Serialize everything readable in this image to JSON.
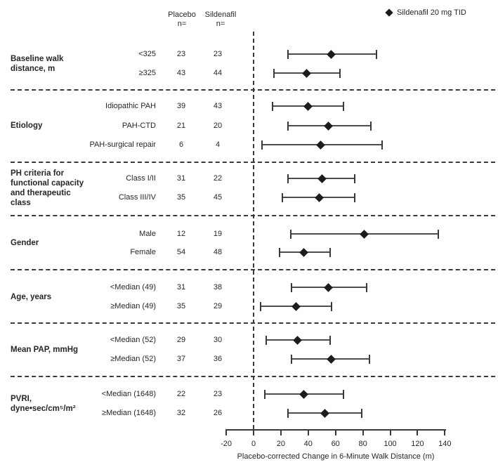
{
  "chart_data": {
    "type": "forest",
    "legend": "Sildenafil 20 mg TID",
    "columns": {
      "placebo": "Placebo\nn=",
      "sildenafil": "Sildenafil\nn="
    },
    "xlabel": "Placebo-corrected Change in 6-Minute Walk Distance (m)",
    "xlim": [
      -20,
      140
    ],
    "x_ticks": [
      -20,
      0,
      20,
      40,
      60,
      80,
      100,
      120,
      140
    ],
    "reference_line_x": 0,
    "colors": {
      "marker": "#1c1c1c",
      "line": "#4d4d4d",
      "text": "#262626"
    },
    "groups": [
      {
        "label": "Baseline walk\ndistance, m",
        "rows": [
          {
            "subgroup": "<325",
            "placebo_n": 23,
            "sildenafil_n": 23,
            "estimate": 57,
            "ci_low": 25,
            "ci_high": 90
          },
          {
            "subgroup": "≥325",
            "placebo_n": 43,
            "sildenafil_n": 44,
            "estimate": 39,
            "ci_low": 15,
            "ci_high": 63
          }
        ]
      },
      {
        "label": "Etiology",
        "rows": [
          {
            "subgroup": "Idiopathic PAH",
            "placebo_n": 39,
            "sildenafil_n": 43,
            "estimate": 40,
            "ci_low": 14,
            "ci_high": 66
          },
          {
            "subgroup": "PAH-CTD",
            "placebo_n": 21,
            "sildenafil_n": 20,
            "estimate": 55,
            "ci_low": 25,
            "ci_high": 86
          },
          {
            "subgroup": "PAH-surgical repair",
            "placebo_n": 6,
            "sildenafil_n": 4,
            "estimate": 49,
            "ci_low": 6,
            "ci_high": 94
          }
        ]
      },
      {
        "label": "PH criteria for\nfunctional capacity\nand therapeutic\nclass",
        "rows": [
          {
            "subgroup": "Class I/II",
            "placebo_n": 31,
            "sildenafil_n": 22,
            "estimate": 50,
            "ci_low": 25,
            "ci_high": 74
          },
          {
            "subgroup": "Class III/IV",
            "placebo_n": 35,
            "sildenafil_n": 45,
            "estimate": 48,
            "ci_low": 21,
            "ci_high": 74
          }
        ]
      },
      {
        "label": "Gender",
        "rows": [
          {
            "subgroup": "Male",
            "placebo_n": 12,
            "sildenafil_n": 19,
            "estimate": 81,
            "ci_low": 27,
            "ci_high": 135
          },
          {
            "subgroup": "Female",
            "placebo_n": 54,
            "sildenafil_n": 48,
            "estimate": 37,
            "ci_low": 19,
            "ci_high": 56
          }
        ]
      },
      {
        "label": "Age, years",
        "rows": [
          {
            "subgroup": "<Median (49)",
            "placebo_n": 31,
            "sildenafil_n": 38,
            "estimate": 55,
            "ci_low": 28,
            "ci_high": 83
          },
          {
            "subgroup": "≥Median (49)",
            "placebo_n": 35,
            "sildenafil_n": 29,
            "estimate": 31,
            "ci_low": 5,
            "ci_high": 57
          }
        ]
      },
      {
        "label": "Mean PAP, mmHg",
        "rows": [
          {
            "subgroup": "<Median (52)",
            "placebo_n": 29,
            "sildenafil_n": 30,
            "estimate": 32,
            "ci_low": 9,
            "ci_high": 56
          },
          {
            "subgroup": "≥Median (52)",
            "placebo_n": 37,
            "sildenafil_n": 36,
            "estimate": 57,
            "ci_low": 28,
            "ci_high": 85
          }
        ]
      },
      {
        "label": "PVRI,\ndyne•sec/cm⁵/m²",
        "rows": [
          {
            "subgroup": "<Median (1648)",
            "placebo_n": 22,
            "sildenafil_n": 23,
            "estimate": 37,
            "ci_low": 8,
            "ci_high": 66
          },
          {
            "subgroup": "≥Median (1648)",
            "placebo_n": 32,
            "sildenafil_n": 26,
            "estimate": 52,
            "ci_low": 25,
            "ci_high": 79
          }
        ]
      }
    ]
  }
}
